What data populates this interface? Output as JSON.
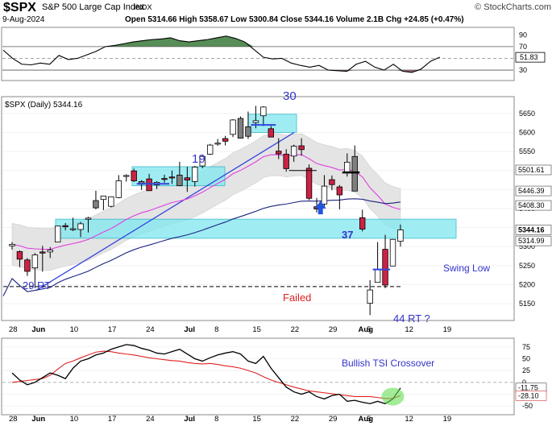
{
  "header": {
    "symbol": "$SPX",
    "name": "S&P 500 Large Cap Index",
    "exchange": "INDX",
    "watermark": "© StockCharts.com",
    "date": "9-Aug-2024",
    "quote": "Open 5314.66  High 5358.67  Low 5300.84  Close 5344.16  Volume 2.1B  Chg +24.85 (+0.47%)",
    "quote_arrow": "▲",
    "price_label": "$SPX (Daily) 5344.16"
  },
  "colors": {
    "up": "#ffffff",
    "down": "#cc2244",
    "grey_candle": "#7f7f7f",
    "ma_short": "#e040e0",
    "ma_long": "#1a237e",
    "trend": "#3344dd",
    "zone": "#7fe8f0",
    "band": "#e4e4e4",
    "annotation": "#3333cc",
    "failed": "#dd2222",
    "tsi": "#000000",
    "tsi_signal": "#dd2222",
    "crossover": "#66dd55"
  },
  "annotations": {
    "label_30": "30",
    "label_19": "19",
    "label_37": "37",
    "label_29rt": "29 RT",
    "label_failed": "Failed",
    "label_44rt": "44 RT ?",
    "label_swing_low": "Swing Low",
    "label_tsi_cross": "Bullish TSI Crossover"
  },
  "chart_data": [
    {
      "type": "line",
      "panel": "top indicator",
      "ylim": [
        15,
        100
      ],
      "yticks": [
        90,
        70,
        50,
        30
      ],
      "reference_lines": [
        70,
        30
      ],
      "last_value_label": "51.83",
      "values": [
        64,
        50,
        40,
        39,
        42,
        40,
        55,
        48,
        50,
        56,
        62,
        70,
        72,
        75,
        78,
        80,
        82,
        83,
        85,
        80,
        78,
        80,
        82,
        85,
        88,
        84,
        78,
        65,
        52,
        49,
        50,
        42,
        38,
        35,
        38,
        30,
        29,
        28,
        40,
        45,
        35,
        30,
        40,
        28,
        26,
        32,
        45,
        52
      ]
    },
    {
      "type": "candlestick",
      "panel": "price",
      "x": [
        "May 28",
        "May 29",
        "May 30",
        "May 31",
        "Jun 3",
        "Jun 4",
        "Jun 5",
        "Jun 6",
        "Jun 7",
        "Jun 10",
        "Jun 11",
        "Jun 12",
        "Jun 13",
        "Jun 14",
        "Jun 17",
        "Jun 18",
        "Jun 20",
        "Jun 21",
        "Jun 24",
        "Jun 25",
        "Jun 26",
        "Jun 27",
        "Jun 28",
        "Jul 1",
        "Jul 2",
        "Jul 3",
        "Jul 5",
        "Jul 8",
        "Jul 9",
        "Jul 10",
        "Jul 11",
        "Jul 12",
        "Jul 15",
        "Jul 16",
        "Jul 17",
        "Jul 18",
        "Jul 19",
        "Jul 22",
        "Jul 23",
        "Jul 24",
        "Jul 25",
        "Jul 26",
        "Jul 29",
        "Jul 30",
        "Jul 31",
        "Aug 1",
        "Aug 2",
        "Aug 5",
        "Aug 6",
        "Aug 7",
        "Aug 8",
        "Aug 9"
      ],
      "open": [
        5302,
        5287,
        5265,
        5244,
        5286,
        5286,
        5312,
        5355,
        5347,
        5345,
        5372,
        5402,
        5424,
        5406,
        5429,
        5486,
        5499,
        5471,
        5478,
        5462,
        5479,
        5483,
        5488,
        5481,
        5471,
        5512,
        5543,
        5572,
        5584,
        5595,
        5637,
        5590,
        5626,
        5644,
        5610,
        5551,
        5543,
        5538,
        5565,
        5506,
        5405,
        5412,
        5476,
        5457,
        5496,
        5537,
        5376,
        5151,
        5206,
        5293,
        5249,
        5314
      ],
      "high": [
        5312,
        5290,
        5270,
        5283,
        5302,
        5299,
        5355,
        5362,
        5376,
        5365,
        5378,
        5447,
        5433,
        5432,
        5488,
        5490,
        5505,
        5475,
        5491,
        5472,
        5489,
        5500,
        5523,
        5510,
        5512,
        5540,
        5570,
        5583,
        5591,
        5635,
        5642,
        5655,
        5670,
        5669,
        5617,
        5585,
        5556,
        5568,
        5585,
        5516,
        5428,
        5488,
        5487,
        5462,
        5545,
        5566,
        5397,
        5212,
        5312,
        5331,
        5320,
        5358
      ],
      "low": [
        5292,
        5246,
        5223,
        5191,
        5234,
        5270,
        5312,
        5343,
        5341,
        5325,
        5337,
        5398,
        5396,
        5403,
        5427,
        5471,
        5470,
        5449,
        5447,
        5451,
        5468,
        5465,
        5459,
        5444,
        5458,
        5506,
        5541,
        5565,
        5566,
        5588,
        5584,
        5583,
        5611,
        5617,
        5588,
        5530,
        5497,
        5523,
        5539,
        5422,
        5390,
        5405,
        5448,
        5398,
        5484,
        5447,
        5340,
        5120,
        5206,
        5191,
        5249,
        5300
      ],
      "close": [
        5306,
        5267,
        5235,
        5278,
        5283,
        5291,
        5354,
        5352,
        5347,
        5360,
        5375,
        5421,
        5433,
        5431,
        5473,
        5487,
        5473,
        5464,
        5447,
        5469,
        5478,
        5482,
        5460,
        5475,
        5509,
        5537,
        5567,
        5572,
        5577,
        5633,
        5585,
        5615,
        5631,
        5667,
        5588,
        5544,
        5505,
        5564,
        5555,
        5427,
        5399,
        5459,
        5463,
        5436,
        5522,
        5446,
        5346,
        5186,
        5240,
        5199,
        5319,
        5344
      ],
      "ylim": [
        5110,
        5690
      ],
      "yticks": [
        5650,
        5600,
        5550,
        5500,
        5450,
        5400,
        5350,
        5300,
        5250,
        5200,
        5150
      ],
      "overlays": {
        "ma_short_last": "5344.16",
        "ma_long_last": "5446.39",
        "band_upper_last": "5501.61",
        "band_lower_last": "5314.99",
        "extra_last": "5408.30"
      },
      "xticks": [
        "28",
        "Jun",
        "10",
        "17",
        "24",
        "Jul",
        "8",
        "15",
        "22",
        "29",
        "Aug",
        "5",
        "12",
        "19"
      ]
    },
    {
      "type": "line",
      "panel": "TSI",
      "ylim": [
        -65,
        90
      ],
      "yticks": [
        75,
        50,
        25,
        0,
        -25,
        -50
      ],
      "last_tsi": "-11.75",
      "last_signal": "-28.10",
      "series": [
        {
          "name": "TSI",
          "values": [
            20,
            5,
            -5,
            0,
            10,
            20,
            15,
            8,
            30,
            45,
            50,
            58,
            62,
            70,
            75,
            80,
            78,
            72,
            68,
            62,
            60,
            65,
            70,
            60,
            50,
            45,
            52,
            58,
            62,
            65,
            60,
            45,
            40,
            55,
            30,
            10,
            -10,
            -20,
            -25,
            -20,
            -30,
            -35,
            -28,
            -25,
            -40,
            -38,
            -42,
            -45,
            -40,
            -45,
            -35,
            -12
          ]
        },
        {
          "name": "Signal",
          "values": [
            0,
            2,
            4,
            6,
            8,
            15,
            28,
            40,
            45,
            52,
            58,
            64,
            66,
            65,
            62,
            60,
            58,
            55,
            52,
            50,
            48,
            46,
            45,
            42,
            40,
            39,
            40,
            38,
            35,
            33,
            30,
            25,
            20,
            12,
            5,
            0,
            -5,
            -10,
            -14,
            -18,
            -20,
            -22,
            -24,
            -26,
            -28,
            -30,
            -30,
            -30,
            -32,
            -34,
            -34,
            -28
          ]
        }
      ]
    }
  ]
}
